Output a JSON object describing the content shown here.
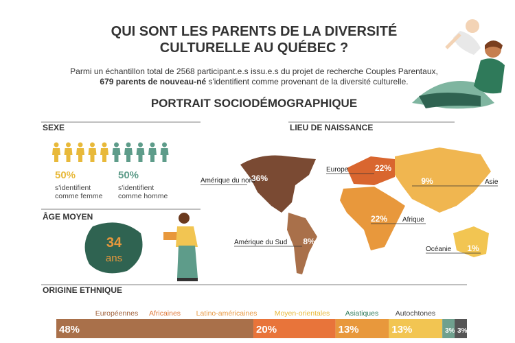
{
  "header": {
    "title_line1": "QUI SONT LES PARENTS DE LA DIVERSITÉ",
    "title_line2": "CULTURELLE AU QUÉBEC ?",
    "intro_line1": "Parmi un échantillon total de 2568 participant.e.s issu.e.s du projet de recherche Couples Parentaux,",
    "intro_bold": "679 parents de nouveau-né",
    "intro_rest": "s'identifient comme provenant de la diversité culturelle.",
    "subtitle": "PORTRAIT SOCIODÉMOGRAPHIQUE"
  },
  "sexe": {
    "heading": "SEXE",
    "women": {
      "percent": "50%",
      "line1": "s'identifient",
      "line2": "comme femme"
    },
    "men": {
      "percent": "50%",
      "line1": "s'identifient",
      "line2": "comme homme"
    }
  },
  "age": {
    "heading": "ÂGE MOYEN",
    "value": "34",
    "unit": "ans"
  },
  "naissance": {
    "heading": "LIEU DE NAISSANCE",
    "regions": [
      {
        "name": "Amérique du nord",
        "percent": "36%"
      },
      {
        "name": "Europe",
        "percent": "22%"
      },
      {
        "name": "Asie",
        "percent": "9%"
      },
      {
        "name": "Afrique",
        "percent": "22%"
      },
      {
        "name": "Amérique du Sud",
        "percent": "8%"
      },
      {
        "name": "Océanie",
        "percent": "1%"
      }
    ]
  },
  "origine": {
    "heading": "ORIGINE ETHNIQUE",
    "segments": [
      {
        "name": "Européennes",
        "value": 48,
        "label": "48%",
        "color": "#a9704a",
        "text_color": "#a0613b"
      },
      {
        "name": "Africaines",
        "value": 20,
        "label": "20%",
        "color": "#e8743a",
        "text_color": "#e07a3c"
      },
      {
        "name": "Latino-américaines",
        "value": 13,
        "label": "13%",
        "color": "#e8983c",
        "text_color": "#e89a45"
      },
      {
        "name": "Moyen-orientales",
        "value": 13,
        "label": "13%",
        "color": "#f2c552",
        "text_color": "#e8b93a"
      },
      {
        "name": "Asiatiques",
        "value": 3,
        "label": "3%",
        "color": "#6fa08e",
        "text_color": "#2f7a5a"
      },
      {
        "name": "Autochtones",
        "value": 3,
        "label": "3%",
        "color": "#555555",
        "text_color": "#444444"
      }
    ]
  }
}
